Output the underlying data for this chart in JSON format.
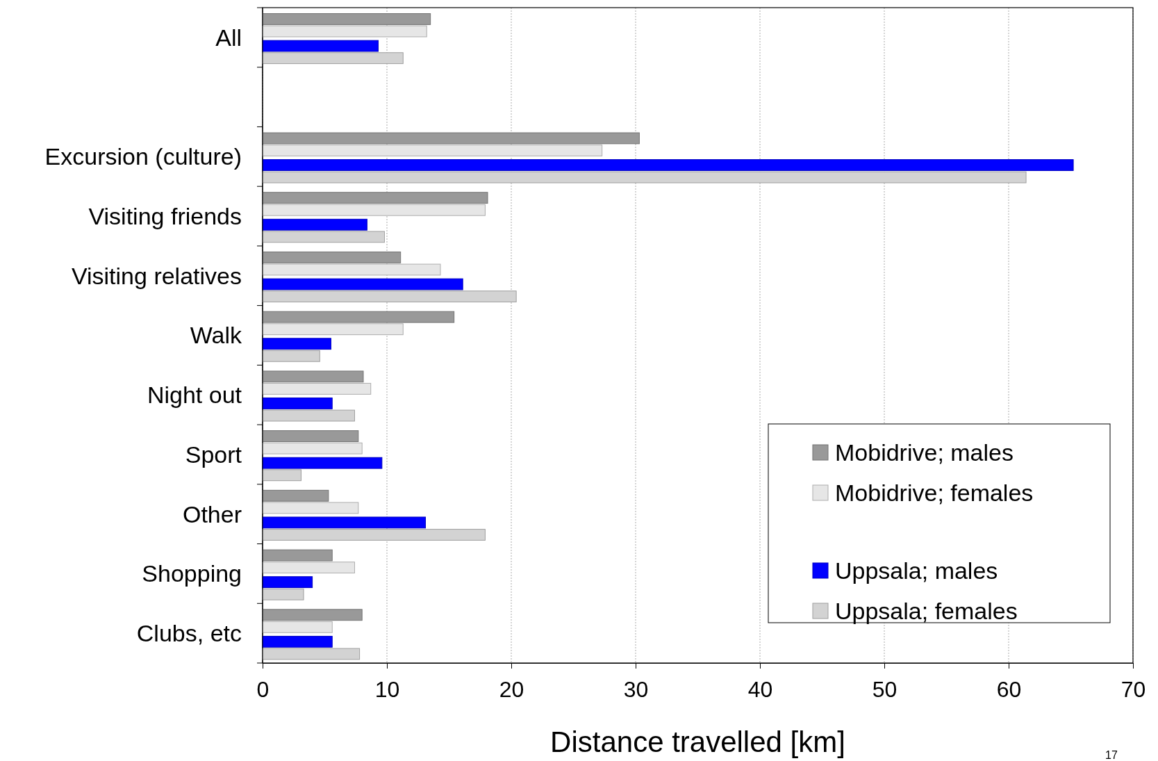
{
  "chart_data": {
    "type": "bar",
    "orientation": "horizontal",
    "xlabel": "Distance travelled [km]",
    "categories": [
      "All",
      null,
      "Excursion (culture)",
      "Visiting friends",
      "Visiting relatives",
      "Walk",
      "Night out",
      "Sport",
      "Other",
      "Shopping",
      "Clubs, etc"
    ],
    "series": [
      {
        "name": "Mobidrive; males",
        "color": "#999999",
        "values": [
          13.5,
          null,
          30.3,
          18.1,
          11.1,
          15.4,
          8.1,
          7.7,
          5.3,
          5.6,
          8.0
        ]
      },
      {
        "name": "Mobidrive; females",
        "color": "#e6e6e6",
        "values": [
          13.2,
          null,
          27.3,
          17.9,
          14.3,
          11.3,
          8.7,
          8.0,
          7.7,
          7.4,
          5.6
        ]
      },
      {
        "name": "Uppsala; males",
        "color": "#0000ff",
        "values": [
          9.3,
          null,
          65.2,
          8.4,
          16.1,
          5.5,
          5.6,
          9.6,
          13.1,
          4.0,
          5.6
        ]
      },
      {
        "name": "Uppsala; females",
        "color": "#d3d3d3",
        "values": [
          11.3,
          null,
          61.4,
          9.8,
          20.4,
          4.6,
          7.4,
          3.1,
          17.9,
          3.3,
          7.8
        ]
      }
    ],
    "xlim": [
      0,
      70
    ],
    "xticks": [
      0,
      10,
      20,
      30,
      40,
      50,
      60,
      70
    ],
    "grid": "x",
    "legend": "bottom right",
    "annotations": [
      "17"
    ]
  }
}
